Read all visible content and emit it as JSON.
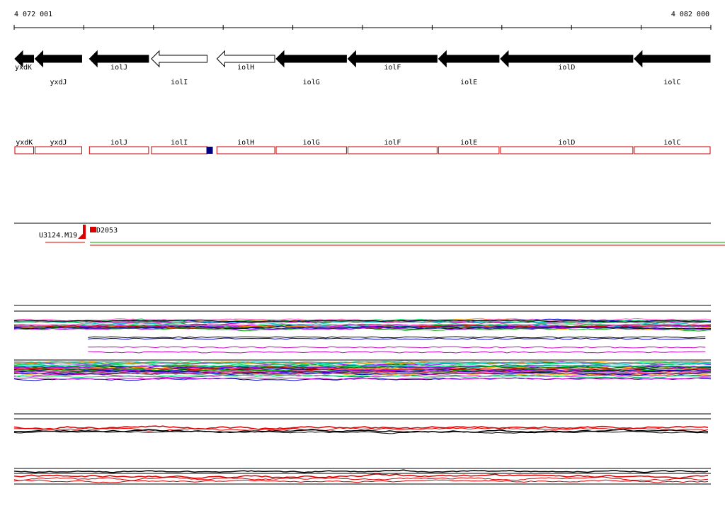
{
  "ruler": {
    "start_label": "4 072 001",
    "end_label": "4 082 000",
    "start": 4072001,
    "end": 4082000
  },
  "genes": [
    {
      "name": "yxdK",
      "strand": "-",
      "filled": true,
      "start": 4072001,
      "end": 4072291
    },
    {
      "name": "yxdJ",
      "strand": "-",
      "filled": true,
      "start": 4072291,
      "end": 4072981
    },
    {
      "name": "iolJ",
      "strand": "-",
      "filled": true,
      "start": 4073071,
      "end": 4073941
    },
    {
      "name": "iolI",
      "strand": "-",
      "filled": false,
      "start": 4073961,
      "end": 4074781
    },
    {
      "name": "iolH",
      "strand": "-",
      "filled": false,
      "start": 4074901,
      "end": 4075751
    },
    {
      "name": "iolG",
      "strand": "-",
      "filled": true,
      "start": 4075751,
      "end": 4076781
    },
    {
      "name": "iolF",
      "strand": "-",
      "filled": true,
      "start": 4076781,
      "end": 4078081
    },
    {
      "name": "iolE",
      "strand": "-",
      "filled": true,
      "start": 4078081,
      "end": 4078971
    },
    {
      "name": "iolD",
      "strand": "-",
      "filled": true,
      "start": 4078971,
      "end": 4080891
    },
    {
      "name": "iolC",
      "strand": "-",
      "filled": true,
      "start": 4080891,
      "end": 4082000
    }
  ],
  "annotations": {
    "marker_position": 4074801,
    "marker_color": "#000080",
    "box_color": "#cc0000"
  },
  "transcripts": {
    "left_label": "U3124.M19",
    "right_label": "D2053",
    "boundary": 4073061
  },
  "colors": {
    "gene_fill": "#000000",
    "ruler": "#000000",
    "signal_red": "#dd0000",
    "signal_green": "#00aa00"
  }
}
